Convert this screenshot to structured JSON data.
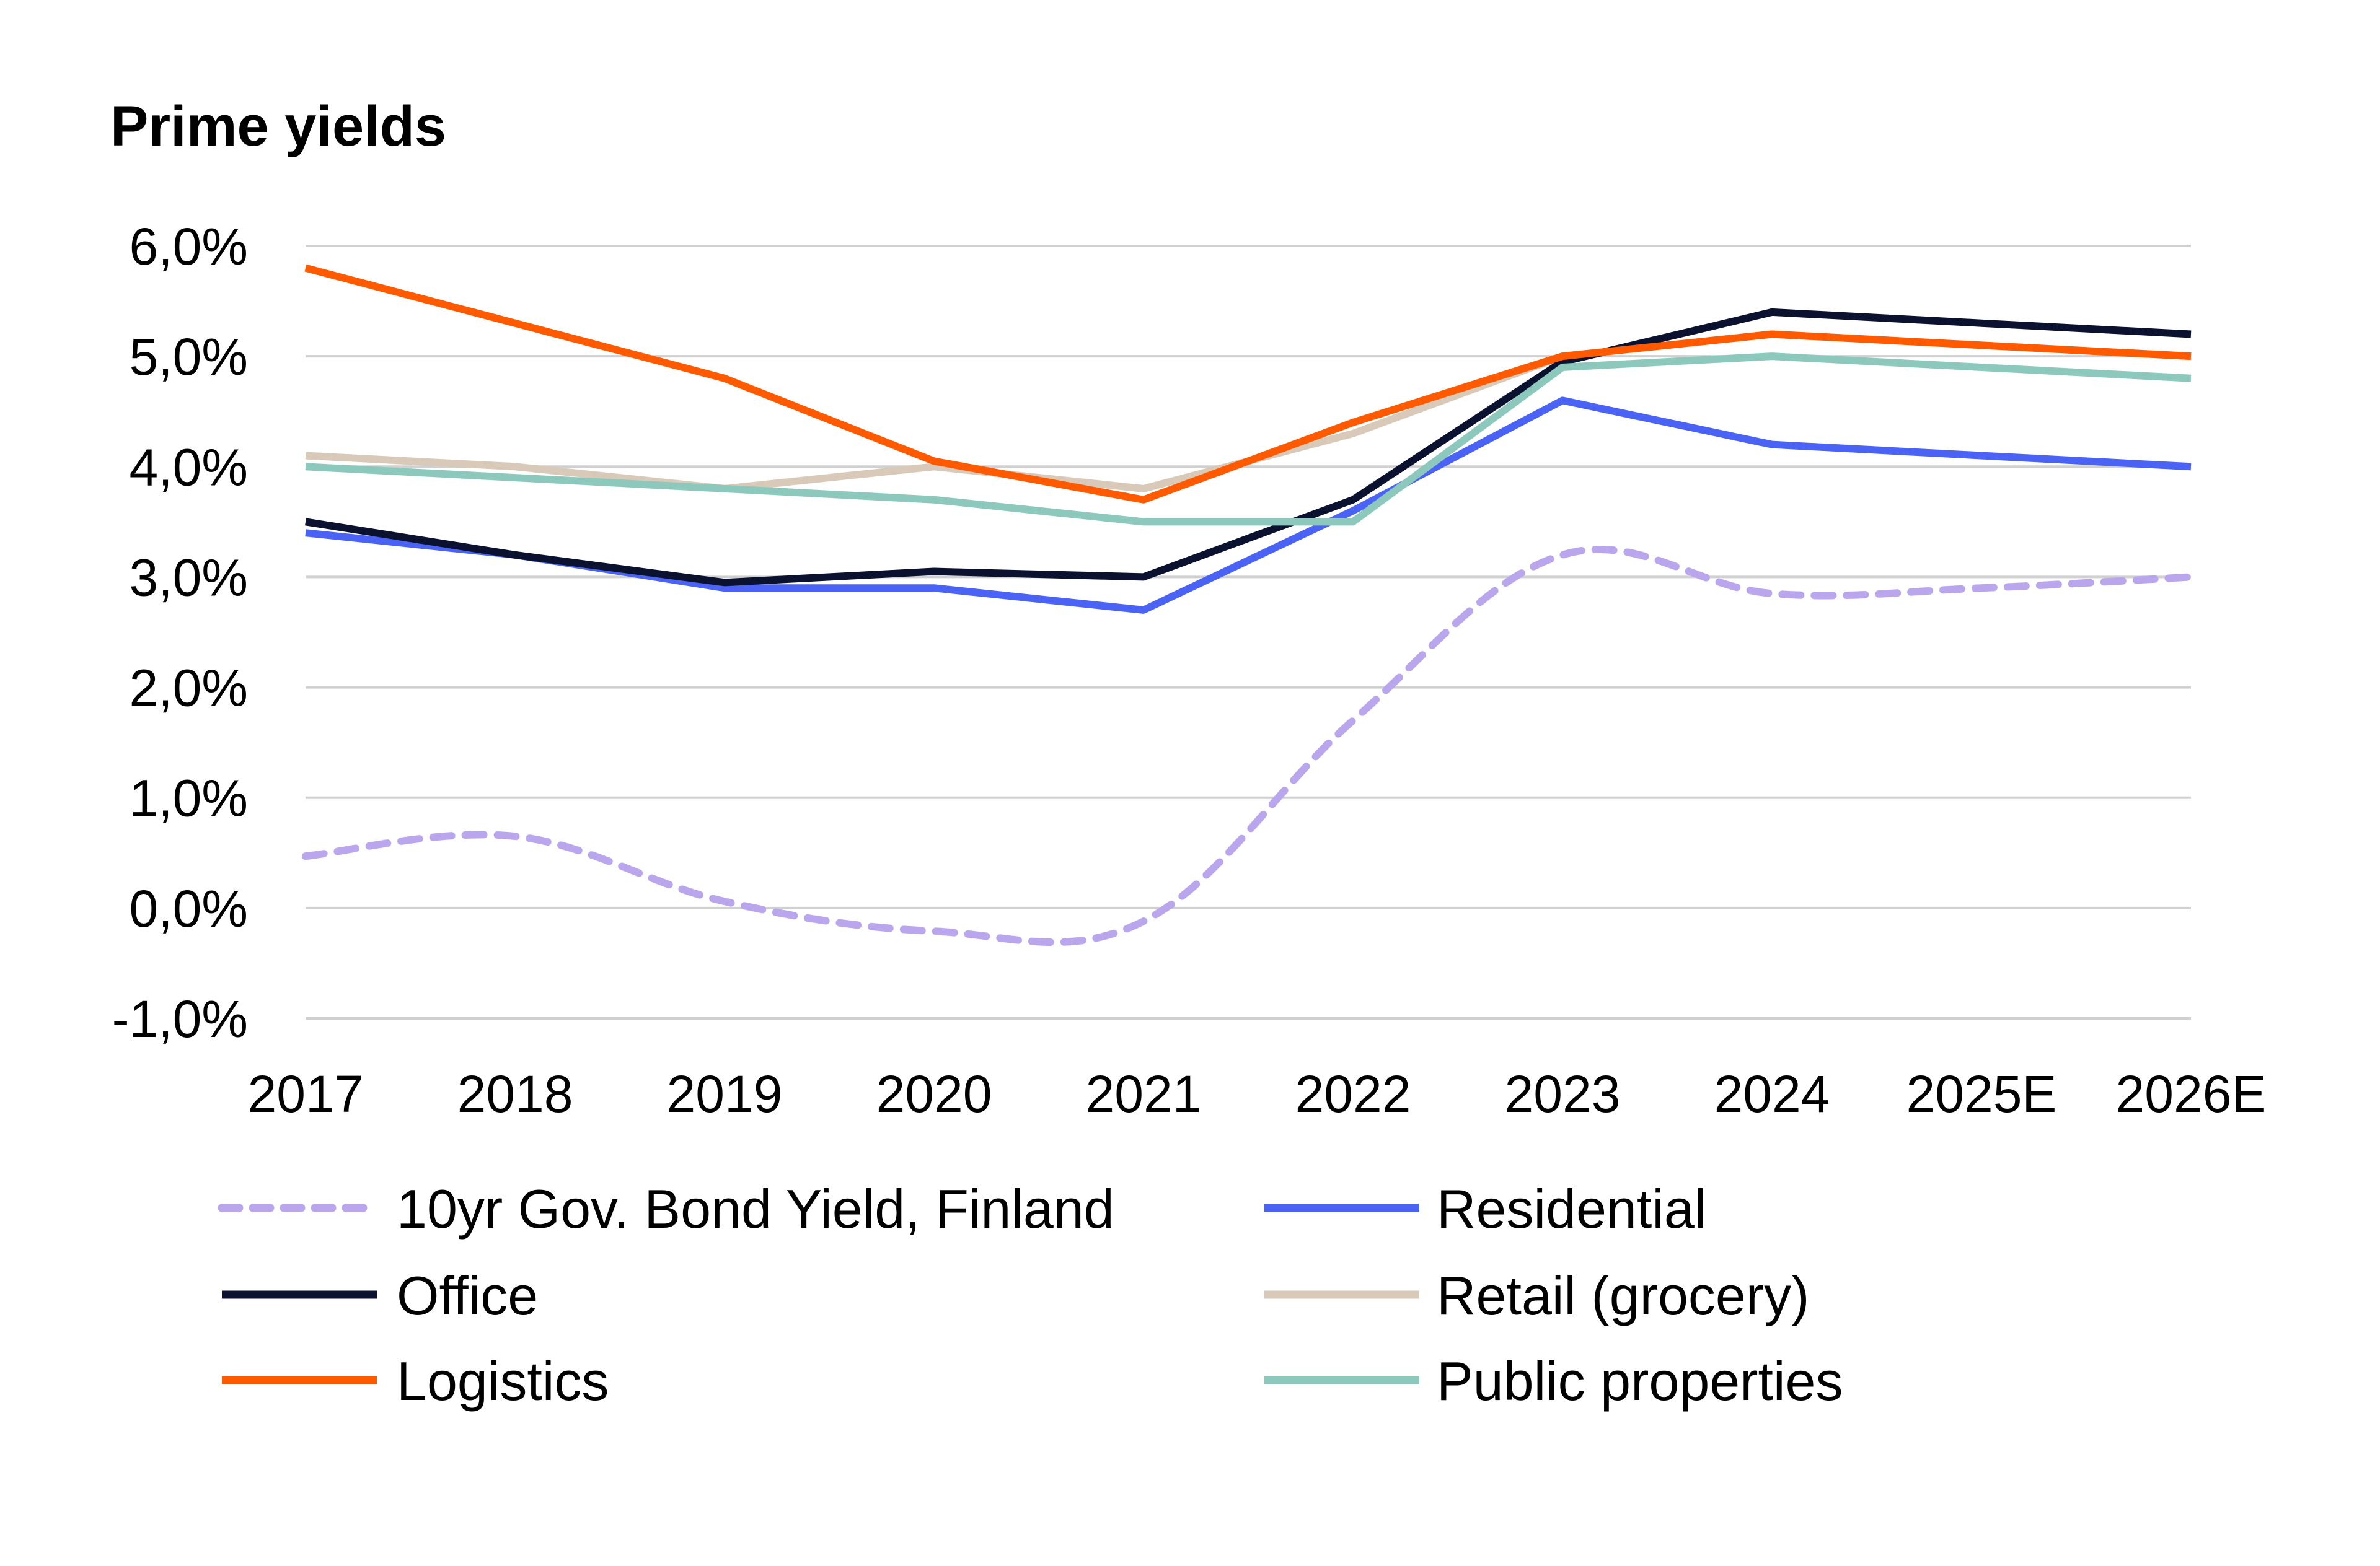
{
  "chart_data": {
    "type": "line",
    "title": "Prime yields",
    "xlabel": "",
    "ylabel": "",
    "x": [
      "2017",
      "2018",
      "2019",
      "2020",
      "2021",
      "2022",
      "2023",
      "2024",
      "2025E",
      "2026E"
    ],
    "ylim": [
      -1.0,
      6.0
    ],
    "yticks": [
      6.0,
      5.0,
      4.0,
      3.0,
      2.0,
      1.0,
      0.0,
      -1.0
    ],
    "ytick_labels": [
      "6,0%",
      "5,0%",
      "4,0%",
      "3,0%",
      "2,0%",
      "1,0%",
      "0,0%",
      "-1,0%"
    ],
    "grid": "horizontal",
    "legend_position": "bottom",
    "series": [
      {
        "name": "10yr Gov. Bond Yield, Finland",
        "color": "#B9A6EC",
        "dashed": true,
        "smooth": true,
        "values": [
          0.47,
          0.65,
          0.06,
          -0.21,
          -0.12,
          1.7,
          3.2,
          2.85,
          2.9,
          3.0
        ]
      },
      {
        "name": "Residential",
        "color": "#4A63F5",
        "dashed": false,
        "values": [
          3.4,
          3.2,
          2.9,
          2.9,
          2.7,
          3.6,
          4.6,
          4.2,
          4.1,
          4.0
        ]
      },
      {
        "name": "Office",
        "color": "#0A1230",
        "dashed": false,
        "values": [
          3.5,
          3.2,
          2.95,
          3.05,
          3.0,
          3.7,
          4.95,
          5.4,
          5.3,
          5.2
        ]
      },
      {
        "name": "Retail (grocery)",
        "color": "#D8C9B8",
        "dashed": false,
        "values": [
          4.1,
          4.0,
          3.8,
          4.0,
          3.8,
          4.3,
          5.0,
          5.2,
          5.1,
          5.0
        ]
      },
      {
        "name": "Logistics",
        "color": "#FF5A00",
        "dashed": false,
        "values": [
          5.8,
          5.3,
          4.8,
          4.05,
          3.7,
          4.4,
          5.0,
          5.2,
          5.1,
          5.0
        ]
      },
      {
        "name": "Public properties",
        "color": "#8CC8BC",
        "dashed": false,
        "values": [
          4.0,
          3.9,
          3.8,
          3.7,
          3.5,
          3.5,
          4.9,
          5.0,
          4.9,
          4.8
        ]
      }
    ]
  },
  "colors": {
    "gridline": "#D0D0D0",
    "text": "#000000"
  }
}
